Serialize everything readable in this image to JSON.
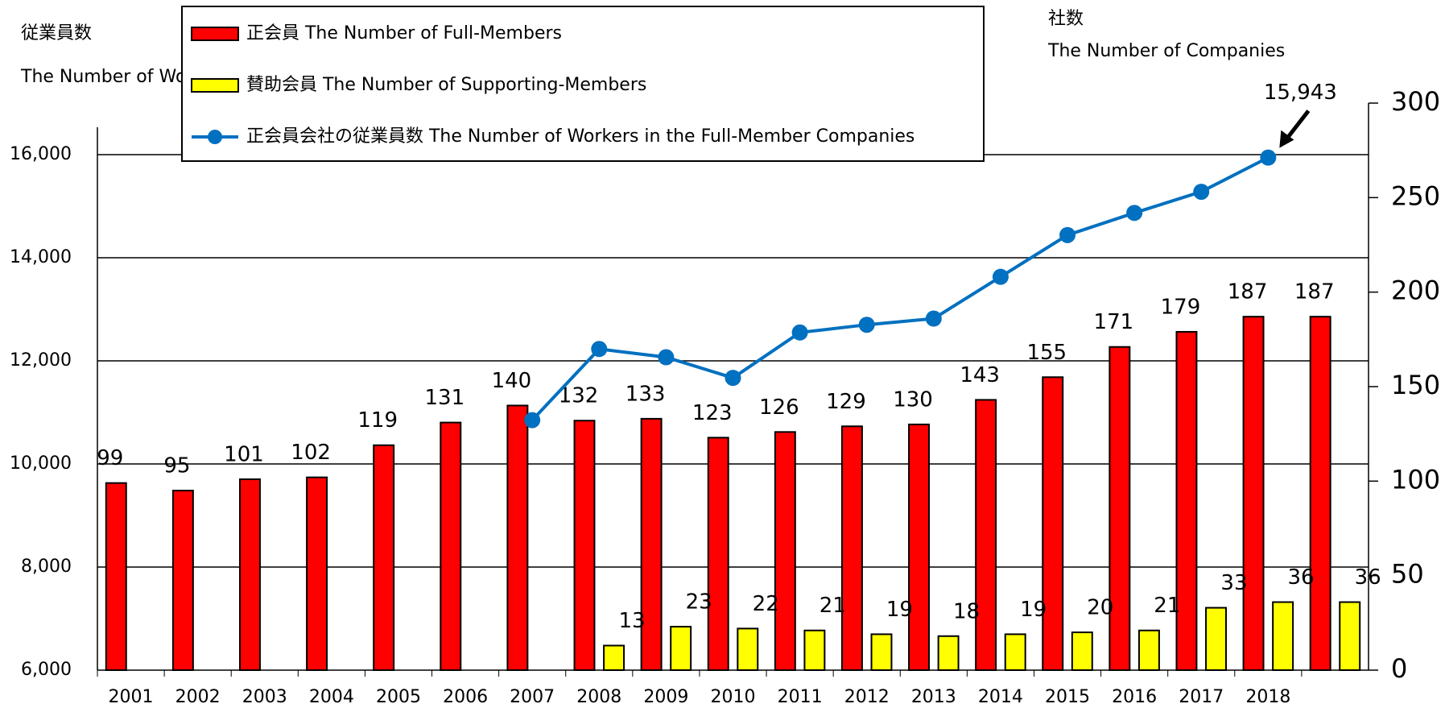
{
  "chart_data": {
    "type": "bar",
    "ylabel": [
      "従業員数",
      "The Number of Workers"
    ],
    "y2label": [
      "社数",
      "The Number of Companies"
    ],
    "categories": [
      "2001",
      "2002",
      "2003",
      "2004",
      "2005",
      "2006",
      "2007",
      "2008",
      "2009",
      "2010",
      "2011",
      "2012",
      "2013",
      "2014",
      "2015",
      "2016",
      "2017",
      "2018",
      null
    ],
    "series": [
      {
        "name": "正会員 The Number of Full-Members",
        "color": "#ff0000",
        "axis": "y2",
        "values": [
          99,
          95,
          101,
          102,
          119,
          131,
          140,
          132,
          133,
          123,
          126,
          129,
          130,
          143,
          155,
          171,
          179,
          187,
          187
        ]
      },
      {
        "name": "賛助会員 The Number of Supporting-Members",
        "color": "#ffff00",
        "axis": "y2",
        "values": [
          null,
          null,
          null,
          null,
          null,
          null,
          null,
          13,
          23,
          22,
          21,
          19,
          18,
          19,
          20,
          21,
          33,
          36,
          36
        ]
      },
      {
        "name": "正会員会社の従業員数 The Number of Workers in the Full-Member Companies",
        "color": "#0070c0",
        "type": "line",
        "values": [
          null,
          null,
          null,
          null,
          null,
          null,
          10850,
          12230,
          12070,
          11670,
          12550,
          12700,
          12820,
          13630,
          14440,
          14870,
          15280,
          15943,
          null
        ],
        "value_labels": [
          null,
          null,
          null,
          null,
          null,
          null,
          null,
          null,
          null,
          null,
          null,
          null,
          null,
          null,
          null,
          null,
          null,
          "15,943",
          null
        ]
      }
    ],
    "ylim": [
      6000,
      17000
    ],
    "yticks": [
      {
        "value": 6000,
        "label": "6,000"
      },
      {
        "value": 8000,
        "label": "8,000"
      },
      {
        "value": 10000,
        "label": "10,000"
      },
      {
        "value": 12000,
        "label": "12,000"
      },
      {
        "value": 14000,
        "label": "14,000"
      },
      {
        "value": 16000,
        "label": "16,000"
      }
    ],
    "y2lim": [
      0,
      300
    ],
    "y2ticks": [
      0,
      50,
      100,
      150,
      200,
      250,
      300
    ],
    "grid": true
  }
}
